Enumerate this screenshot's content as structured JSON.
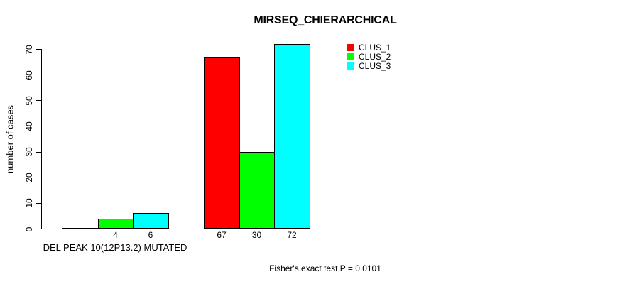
{
  "figure": {
    "background": "#FFFFFF",
    "text_color": "#000000",
    "axis_color": "#000000"
  },
  "chart_data": {
    "type": "bar",
    "title": "MIRSEQ_CHIERARCHICAL",
    "ylabel": "number of cases",
    "xlabel": "DEL PEAK 10(12P13.2) MUTATED",
    "annotation": "Fisher's exact test P = 0.0101",
    "ylim": [
      0,
      70
    ],
    "yticks": [
      0,
      10,
      20,
      30,
      40,
      50,
      60,
      70
    ],
    "grid": false,
    "categories": [
      "DEL PEAK 10(12P13.2) MUTATED",
      ""
    ],
    "series": [
      {
        "name": "CLUS_1",
        "color": "#FF0000",
        "values": [
          0,
          67
        ]
      },
      {
        "name": "CLUS_2",
        "color": "#00FF00",
        "values": [
          4,
          30
        ]
      },
      {
        "name": "CLUS_3",
        "color": "#00FFFF",
        "values": [
          6,
          72
        ]
      }
    ],
    "bar_value_labels": [
      [
        "",
        "4",
        "6"
      ],
      [
        "67",
        "30",
        "72"
      ]
    ],
    "legend": {
      "position": "top-right",
      "entries": [
        "CLUS_1",
        "CLUS_2",
        "CLUS_3"
      ]
    }
  }
}
